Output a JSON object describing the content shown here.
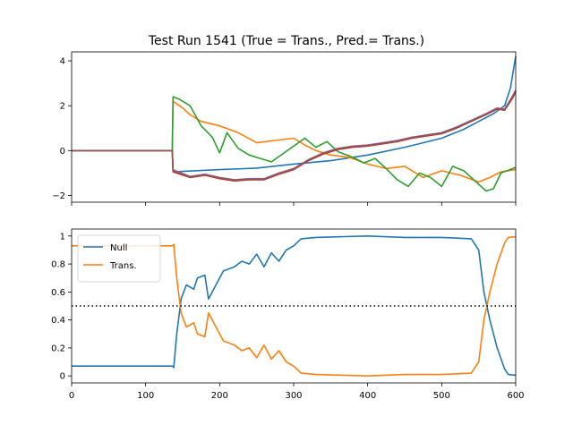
{
  "title": "Test Run 1541 (True = Trans., Pred.= Trans.)",
  "colors": {
    "blue": "#1f77b4",
    "orange": "#ff7f0e",
    "green": "#2ca02c",
    "red": "#d62728",
    "purple": "#9467bd",
    "brown": "#8c564b",
    "pink": "#e377c2",
    "gray": "#7f7f7f"
  },
  "chart_data": [
    {
      "type": "line",
      "xlim": [
        0,
        600
      ],
      "ylim": [
        -2.3,
        4.4
      ],
      "xticks": [
        0,
        100,
        200,
        300,
        400,
        500,
        600
      ],
      "yticks": [
        -2,
        0,
        2,
        4
      ],
      "xtick_labels_visible": false,
      "legend": null,
      "series": [
        {
          "color": "blue",
          "points": [
            [
              0,
              0
            ],
            [
              136,
              0
            ],
            [
              137,
              -0.95
            ],
            [
              200,
              -0.85
            ],
            [
              250,
              -0.78
            ],
            [
              300,
              -0.6
            ],
            [
              350,
              -0.45
            ],
            [
              400,
              -0.2
            ],
            [
              450,
              0.15
            ],
            [
              500,
              0.55
            ],
            [
              530,
              0.95
            ],
            [
              550,
              1.3
            ],
            [
              570,
              1.65
            ],
            [
              585,
              2.0
            ],
            [
              593,
              2.8
            ],
            [
              600,
              4.2
            ]
          ]
        },
        {
          "color": "orange",
          "points": [
            [
              0,
              0
            ],
            [
              136,
              0
            ],
            [
              137,
              2.2
            ],
            [
              150,
              1.9
            ],
            [
              160,
              1.6
            ],
            [
              175,
              1.3
            ],
            [
              200,
              1.1
            ],
            [
              225,
              0.8
            ],
            [
              250,
              0.35
            ],
            [
              275,
              0.45
            ],
            [
              300,
              0.55
            ],
            [
              315,
              0.25
            ],
            [
              330,
              0.0
            ],
            [
              350,
              -0.2
            ],
            [
              375,
              -0.3
            ],
            [
              400,
              -0.6
            ],
            [
              425,
              -0.8
            ],
            [
              450,
              -0.7
            ],
            [
              475,
              -1.2
            ],
            [
              500,
              -0.9
            ],
            [
              525,
              -1.1
            ],
            [
              550,
              -1.4
            ],
            [
              565,
              -1.2
            ],
            [
              580,
              -0.95
            ],
            [
              600,
              -0.85
            ]
          ]
        },
        {
          "color": "green",
          "points": [
            [
              0,
              0
            ],
            [
              136,
              0
            ],
            [
              137,
              2.4
            ],
            [
              145,
              2.3
            ],
            [
              160,
              2.0
            ],
            [
              175,
              1.1
            ],
            [
              190,
              0.6
            ],
            [
              200,
              -0.1
            ],
            [
              210,
              0.8
            ],
            [
              225,
              0.1
            ],
            [
              240,
              -0.2
            ],
            [
              255,
              -0.35
            ],
            [
              270,
              -0.5
            ],
            [
              285,
              -0.15
            ],
            [
              300,
              0.2
            ],
            [
              315,
              0.55
            ],
            [
              330,
              0.15
            ],
            [
              345,
              0.4
            ],
            [
              360,
              -0.05
            ],
            [
              380,
              -0.3
            ],
            [
              395,
              -0.55
            ],
            [
              410,
              -0.35
            ],
            [
              425,
              -0.8
            ],
            [
              440,
              -1.3
            ],
            [
              455,
              -1.6
            ],
            [
              470,
              -1.0
            ],
            [
              485,
              -1.2
            ],
            [
              500,
              -1.6
            ],
            [
              515,
              -0.7
            ],
            [
              530,
              -0.9
            ],
            [
              545,
              -1.35
            ],
            [
              560,
              -1.8
            ],
            [
              570,
              -1.7
            ],
            [
              580,
              -1.0
            ],
            [
              600,
              -0.75
            ]
          ]
        },
        {
          "color": "red",
          "points": [
            [
              0,
              0
            ],
            [
              136,
              0
            ],
            [
              137,
              -0.95
            ],
            [
              160,
              -1.2
            ],
            [
              180,
              -1.1
            ],
            [
              200,
              -1.25
            ],
            [
              220,
              -1.35
            ],
            [
              240,
              -1.3
            ],
            [
              260,
              -1.3
            ],
            [
              280,
              -1.05
            ],
            [
              300,
              -0.85
            ],
            [
              320,
              -0.45
            ],
            [
              340,
              -0.15
            ],
            [
              360,
              0.05
            ],
            [
              380,
              0.15
            ],
            [
              400,
              0.2
            ],
            [
              420,
              0.3
            ],
            [
              440,
              0.4
            ],
            [
              460,
              0.55
            ],
            [
              480,
              0.65
            ],
            [
              500,
              0.75
            ],
            [
              520,
              1.0
            ],
            [
              540,
              1.3
            ],
            [
              560,
              1.6
            ],
            [
              575,
              1.85
            ],
            [
              585,
              1.8
            ],
            [
              595,
              2.3
            ],
            [
              600,
              2.6
            ]
          ]
        },
        {
          "color": "purple",
          "points": [
            [
              0,
              0
            ],
            [
              136,
              0
            ],
            [
              137,
              -0.85
            ],
            [
              160,
              -1.15
            ],
            [
              180,
              -1.05
            ],
            [
              200,
              -1.2
            ],
            [
              220,
              -1.3
            ],
            [
              240,
              -1.25
            ],
            [
              260,
              -1.25
            ],
            [
              280,
              -1.0
            ],
            [
              300,
              -0.8
            ],
            [
              320,
              -0.4
            ],
            [
              340,
              -0.1
            ],
            [
              360,
              0.1
            ],
            [
              380,
              0.2
            ],
            [
              400,
              0.25
            ],
            [
              420,
              0.35
            ],
            [
              440,
              0.45
            ],
            [
              460,
              0.6
            ],
            [
              480,
              0.7
            ],
            [
              500,
              0.8
            ],
            [
              520,
              1.05
            ],
            [
              540,
              1.35
            ],
            [
              560,
              1.65
            ],
            [
              575,
              1.9
            ],
            [
              585,
              1.85
            ],
            [
              595,
              2.4
            ],
            [
              600,
              2.7
            ]
          ]
        },
        {
          "color": "brown",
          "points": [
            [
              0,
              0
            ],
            [
              136,
              0
            ],
            [
              137,
              -0.9
            ],
            [
              160,
              -1.18
            ],
            [
              180,
              -1.08
            ],
            [
              200,
              -1.22
            ],
            [
              220,
              -1.32
            ],
            [
              240,
              -1.28
            ],
            [
              260,
              -1.28
            ],
            [
              280,
              -1.02
            ],
            [
              300,
              -0.82
            ],
            [
              320,
              -0.42
            ],
            [
              340,
              -0.12
            ],
            [
              360,
              0.08
            ],
            [
              380,
              0.18
            ],
            [
              400,
              0.22
            ],
            [
              420,
              0.32
            ],
            [
              440,
              0.42
            ],
            [
              460,
              0.58
            ],
            [
              480,
              0.68
            ],
            [
              500,
              0.78
            ],
            [
              520,
              1.02
            ],
            [
              540,
              1.32
            ],
            [
              560,
              1.62
            ],
            [
              575,
              1.88
            ],
            [
              585,
              1.82
            ],
            [
              595,
              2.35
            ],
            [
              600,
              2.65
            ]
          ]
        }
      ]
    },
    {
      "type": "line",
      "xlim": [
        0,
        600
      ],
      "ylim": [
        -0.05,
        1.05
      ],
      "xticks": [
        0,
        100,
        200,
        300,
        400,
        500,
        600
      ],
      "yticks": [
        0.0,
        0.2,
        0.4,
        0.6,
        0.8,
        1.0
      ],
      "hline": {
        "y": 0.5,
        "style": "dotted",
        "color": "#000000"
      },
      "legend": "upper left",
      "series": [
        {
          "name": "Null",
          "color": "blue",
          "points": [
            [
              0,
              0.07
            ],
            [
              136,
              0.07
            ],
            [
              138,
              0.06
            ],
            [
              142,
              0.3
            ],
            [
              148,
              0.55
            ],
            [
              155,
              0.65
            ],
            [
              165,
              0.62
            ],
            [
              170,
              0.7
            ],
            [
              180,
              0.72
            ],
            [
              185,
              0.55
            ],
            [
              195,
              0.65
            ],
            [
              205,
              0.75
            ],
            [
              220,
              0.78
            ],
            [
              230,
              0.82
            ],
            [
              240,
              0.8
            ],
            [
              250,
              0.87
            ],
            [
              260,
              0.78
            ],
            [
              270,
              0.88
            ],
            [
              280,
              0.82
            ],
            [
              290,
              0.9
            ],
            [
              300,
              0.93
            ],
            [
              310,
              0.98
            ],
            [
              330,
              0.99
            ],
            [
              400,
              1.0
            ],
            [
              450,
              0.99
            ],
            [
              500,
              0.99
            ],
            [
              540,
              0.98
            ],
            [
              550,
              0.9
            ],
            [
              557,
              0.6
            ],
            [
              565,
              0.4
            ],
            [
              575,
              0.2
            ],
            [
              585,
              0.05
            ],
            [
              590,
              0.01
            ],
            [
              600,
              0.005
            ]
          ]
        },
        {
          "name": "Trans.",
          "color": "orange",
          "points": [
            [
              0,
              0.93
            ],
            [
              136,
              0.93
            ],
            [
              138,
              0.94
            ],
            [
              142,
              0.7
            ],
            [
              148,
              0.45
            ],
            [
              155,
              0.35
            ],
            [
              165,
              0.38
            ],
            [
              170,
              0.3
            ],
            [
              180,
              0.28
            ],
            [
              185,
              0.45
            ],
            [
              195,
              0.35
            ],
            [
              205,
              0.25
            ],
            [
              220,
              0.22
            ],
            [
              230,
              0.18
            ],
            [
              240,
              0.2
            ],
            [
              250,
              0.13
            ],
            [
              260,
              0.22
            ],
            [
              270,
              0.12
            ],
            [
              280,
              0.18
            ],
            [
              290,
              0.1
            ],
            [
              300,
              0.07
            ],
            [
              310,
              0.02
            ],
            [
              330,
              0.01
            ],
            [
              400,
              0.0
            ],
            [
              450,
              0.01
            ],
            [
              500,
              0.01
            ],
            [
              540,
              0.02
            ],
            [
              550,
              0.1
            ],
            [
              557,
              0.4
            ],
            [
              565,
              0.6
            ],
            [
              575,
              0.8
            ],
            [
              585,
              0.95
            ],
            [
              590,
              0.99
            ],
            [
              600,
              0.995
            ]
          ]
        }
      ]
    }
  ]
}
